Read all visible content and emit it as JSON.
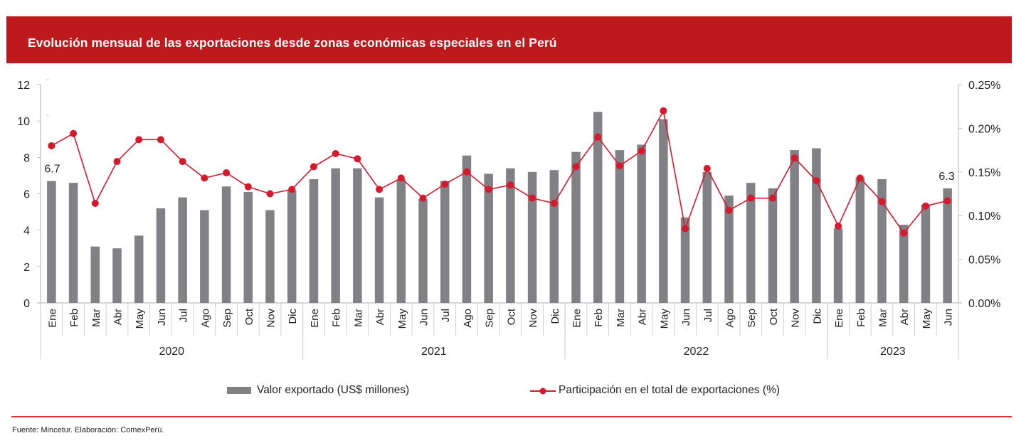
{
  "header": {
    "title": "Evolución mensual de las exportaciones desde zonas económicas especiales en el Perú"
  },
  "footer": {
    "source": "Fuente: Mincetur. Elaboración: ComexPerú."
  },
  "colors": {
    "title_bar": "#be1a1d",
    "bar": "#818085",
    "line": "#d7192d",
    "axis": "#bfbfbf",
    "footer_rule": "#d9343a"
  },
  "chart_data": {
    "type": "bar+line",
    "title": "Evolución mensual de las exportaciones desde zonas económicas especiales en el Perú",
    "categories": [
      "Ene",
      "Feb",
      "Mar",
      "Abr",
      "May",
      "Jun",
      "Jul",
      "Ago",
      "Sep",
      "Oct",
      "Nov",
      "Dic",
      "Ene",
      "Feb",
      "Mar",
      "Abr",
      "May",
      "Jun",
      "Jul",
      "Ago",
      "Sep",
      "Oct",
      "Nov",
      "Dic",
      "Ene",
      "Feb",
      "Mar",
      "Abr",
      "May",
      "Jun",
      "Jul",
      "Ago",
      "Sep",
      "Oct",
      "Nov",
      "Dic",
      "Ene",
      "Feb",
      "Mar",
      "Abr",
      "May",
      "Jun"
    ],
    "groups": [
      {
        "label": "2020",
        "count": 12
      },
      {
        "label": "2021",
        "count": 12
      },
      {
        "label": "2022",
        "count": 12
      },
      {
        "label": "2023",
        "count": 6
      }
    ],
    "series": [
      {
        "name": "Valor exportado (US$ millones)",
        "type": "bar",
        "axis": "left",
        "values": [
          6.7,
          6.6,
          3.1,
          3.0,
          3.7,
          5.2,
          5.8,
          5.1,
          6.4,
          6.1,
          5.1,
          6.2,
          6.8,
          7.4,
          7.4,
          5.8,
          6.8,
          5.7,
          6.7,
          8.1,
          7.1,
          7.4,
          7.2,
          7.3,
          8.3,
          10.5,
          8.4,
          8.7,
          10.1,
          4.7,
          7.2,
          5.9,
          6.6,
          6.3,
          8.4,
          8.5,
          4.1,
          6.9,
          6.8,
          4.3,
          5.4,
          6.3
        ]
      },
      {
        "name": "Participación en el total de exportaciones (%)",
        "type": "line",
        "axis": "right",
        "values": [
          0.18,
          0.194,
          0.114,
          0.162,
          0.187,
          0.187,
          0.162,
          0.143,
          0.149,
          0.133,
          0.125,
          0.13,
          0.156,
          0.171,
          0.165,
          0.13,
          0.143,
          0.12,
          0.136,
          0.15,
          0.13,
          0.135,
          0.12,
          0.114,
          0.156,
          0.19,
          0.157,
          0.174,
          0.22,
          0.085,
          0.154,
          0.106,
          0.12,
          0.12,
          0.166,
          0.14,
          0.088,
          0.143,
          0.116,
          0.08,
          0.111,
          0.117
        ]
      }
    ],
    "data_labels": [
      {
        "index": 0,
        "series": 0,
        "text": "6.7"
      },
      {
        "index": 41,
        "series": 0,
        "text": "6.3"
      }
    ],
    "y_left": {
      "min": 0,
      "max": 12,
      "ticks": [
        "0",
        "2",
        "4",
        "6",
        "8",
        "10",
        "12"
      ]
    },
    "y_right": {
      "min": 0,
      "max": 0.25,
      "ticks": [
        "0.00%",
        "0.05%",
        "0.10%",
        "0.15%",
        "0.20%",
        "0.25%"
      ]
    },
    "xlabel": "",
    "ylabel": "",
    "grid": false,
    "legend_position": "bottom"
  }
}
